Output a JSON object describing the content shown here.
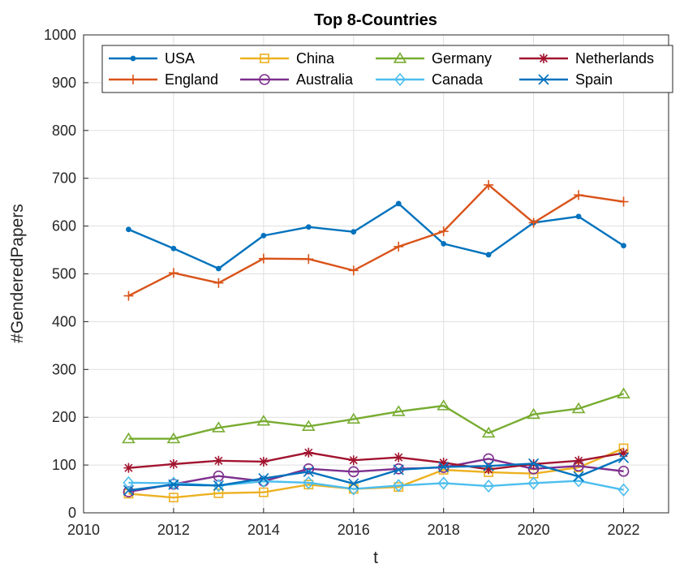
{
  "chart_data": {
    "type": "line",
    "title": "Top 8-Countries",
    "xlabel": "t",
    "ylabel": "#GenderedPapers",
    "xlim": [
      2010,
      2023
    ],
    "ylim": [
      0,
      1000
    ],
    "xticks": [
      "2010",
      "2012",
      "2014",
      "2016",
      "2018",
      "2020",
      "2022"
    ],
    "yticks": [
      "0",
      "100",
      "200",
      "300",
      "400",
      "500",
      "600",
      "700",
      "800",
      "900",
      "1000"
    ],
    "grid": true,
    "legend_placement": "top",
    "x": [
      2011,
      2012,
      2013,
      2014,
      2015,
      2016,
      2017,
      2018,
      2019,
      2020,
      2021,
      2022
    ],
    "series": [
      {
        "name": "USA",
        "color": "#0072BD",
        "marker": "dot",
        "values": [
          593,
          553,
          511,
          580,
          598,
          588,
          647,
          563,
          540,
          607,
          620,
          559
        ]
      },
      {
        "name": "England",
        "color": "#D95319",
        "marker": "plus",
        "values": [
          454,
          502,
          481,
          532,
          531,
          507,
          557,
          589,
          686,
          607,
          665,
          651
        ]
      },
      {
        "name": "China",
        "color": "#EDB120",
        "marker": "square",
        "values": [
          40,
          32,
          41,
          43,
          59,
          50,
          54,
          90,
          85,
          82,
          95,
          135
        ]
      },
      {
        "name": "Australia",
        "color": "#7E2F8E",
        "marker": "circle",
        "values": [
          44,
          60,
          77,
          66,
          92,
          86,
          92,
          95,
          113,
          92,
          98,
          87
        ]
      },
      {
        "name": "Germany",
        "color": "#77AC30",
        "marker": "triangle",
        "values": [
          155,
          155,
          178,
          192,
          181,
          196,
          212,
          224,
          167,
          206,
          218,
          249
        ]
      },
      {
        "name": "Canada",
        "color": "#4DBEEE",
        "marker": "diamond",
        "values": [
          63,
          62,
          57,
          66,
          63,
          50,
          57,
          62,
          56,
          62,
          67,
          48
        ]
      },
      {
        "name": "Netherlands",
        "color": "#A2142F",
        "marker": "star",
        "values": [
          94,
          102,
          109,
          107,
          126,
          110,
          116,
          105,
          91,
          102,
          109,
          125
        ]
      },
      {
        "name": "Spain",
        "color": "#0072BD",
        "marker": "x",
        "values": [
          47,
          59,
          57,
          72,
          86,
          61,
          90,
          96,
          98,
          103,
          76,
          115
        ]
      }
    ]
  }
}
